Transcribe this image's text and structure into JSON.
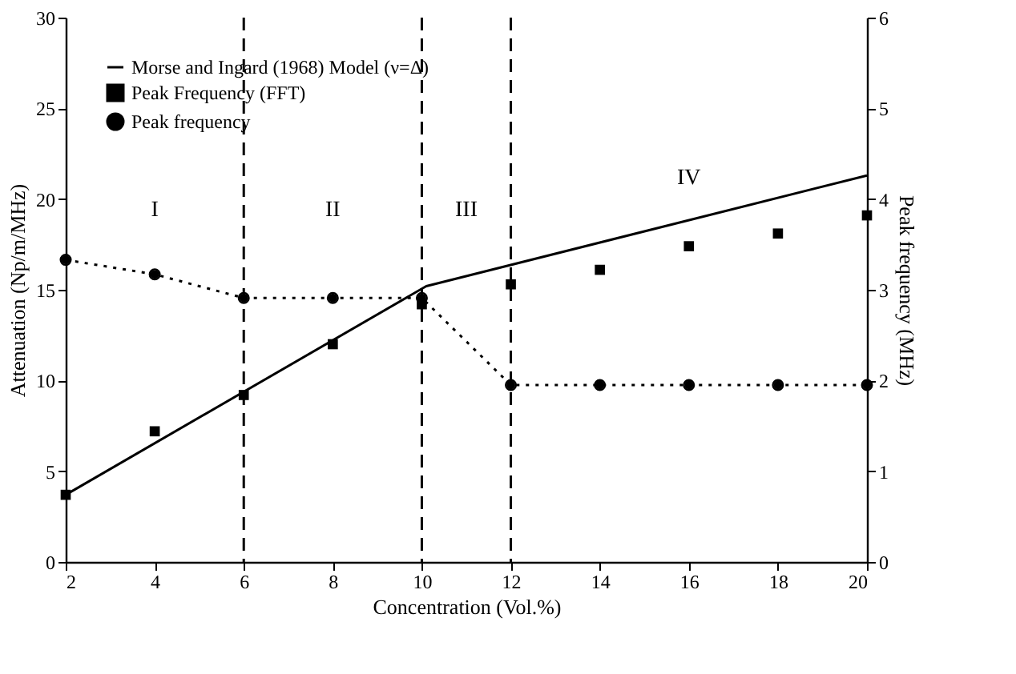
{
  "chart_data": {
    "type": "line",
    "xlabel": "Concentration (Vol.%)",
    "ylabel": "Attenuation (Np/m/MHz)",
    "y2label": "Peak frequency (MHz)",
    "xlim": [
      2,
      20
    ],
    "xticks": [
      2,
      4,
      6,
      8,
      10,
      12,
      14,
      16,
      18,
      20
    ],
    "ylim": [
      0,
      30
    ],
    "yticks": [
      0,
      5,
      10,
      15,
      20,
      25,
      30
    ],
    "y2lim": [
      0,
      6
    ],
    "y2ticks": [
      0,
      1,
      2,
      3,
      4,
      5,
      6
    ],
    "grid": false,
    "legend": "top left",
    "series": [
      {
        "name": "Morse and Ingard (1968) Model (ν=Δ)",
        "marker": "none",
        "line_style": "solid",
        "color": "#000000",
        "x": [
          2,
          10.1,
          20
        ],
        "values": [
          3.7,
          15.2,
          21.3
        ]
      },
      {
        "name": "Peak Frequency (FFT)",
        "type": "scatter",
        "marker": "square",
        "color": "#000000",
        "x": [
          2,
          4,
          6,
          8,
          10,
          12,
          14,
          16,
          18,
          20
        ],
        "values": [
          3.7,
          7.2,
          9.2,
          12.0,
          14.2,
          15.3,
          16.1,
          17.4,
          18.1,
          19.1
        ]
      },
      {
        "name": "Peak frequency",
        "type": "line",
        "marker": "circle",
        "line_style": "dotted",
        "axis": "y2",
        "color": "#000000",
        "x": [
          2,
          4,
          6,
          8,
          10,
          12,
          14,
          16,
          18,
          20
        ],
        "values": [
          3.33,
          3.17,
          2.91,
          2.91,
          2.91,
          1.95,
          1.95,
          1.95,
          1.95,
          1.95
        ]
      }
    ],
    "ref_lines": [
      {
        "axis": "x",
        "value": 6,
        "line_style": "dashed",
        "color": "#000000"
      },
      {
        "axis": "x",
        "value": 10,
        "line_style": "dashed",
        "color": "#000000"
      },
      {
        "axis": "x",
        "value": 12,
        "line_style": "dashed",
        "color": "#000000"
      }
    ],
    "annotations": [
      "I",
      "II",
      "III",
      "IV"
    ]
  }
}
